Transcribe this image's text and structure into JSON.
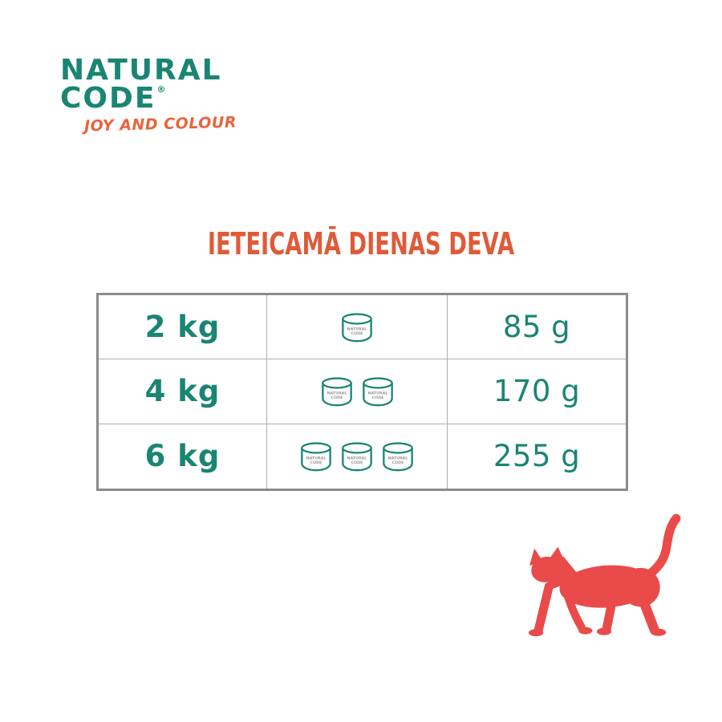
{
  "brand": {
    "logo_line1": "NATURAL",
    "logo_line2": "CODE",
    "registered_mark": "®",
    "tagline": "JOY AND COLOUR"
  },
  "heading": {
    "title": "IETEICAMĀ DIENAS DEVA"
  },
  "table": {
    "rows": [
      {
        "weight": "2 kg",
        "cans": 1,
        "amount": "85 g"
      },
      {
        "weight": "4 kg",
        "cans": 2,
        "amount": "170 g"
      },
      {
        "weight": "6 kg",
        "cans": 3,
        "amount": "255 g"
      }
    ],
    "can_label_line1": "NATURAL",
    "can_label_line2": "CODE"
  },
  "illustration": {
    "name": "walking-cat-silhouette"
  },
  "colors": {
    "teal": "#1A8573",
    "orange": "#E05A38",
    "tagline-orange": "#E8653C",
    "cat-red": "#E94B4B",
    "border-gray": "#8C8C8C",
    "inner-gray": "#ADADAD",
    "can-text-gray": "#999999"
  }
}
